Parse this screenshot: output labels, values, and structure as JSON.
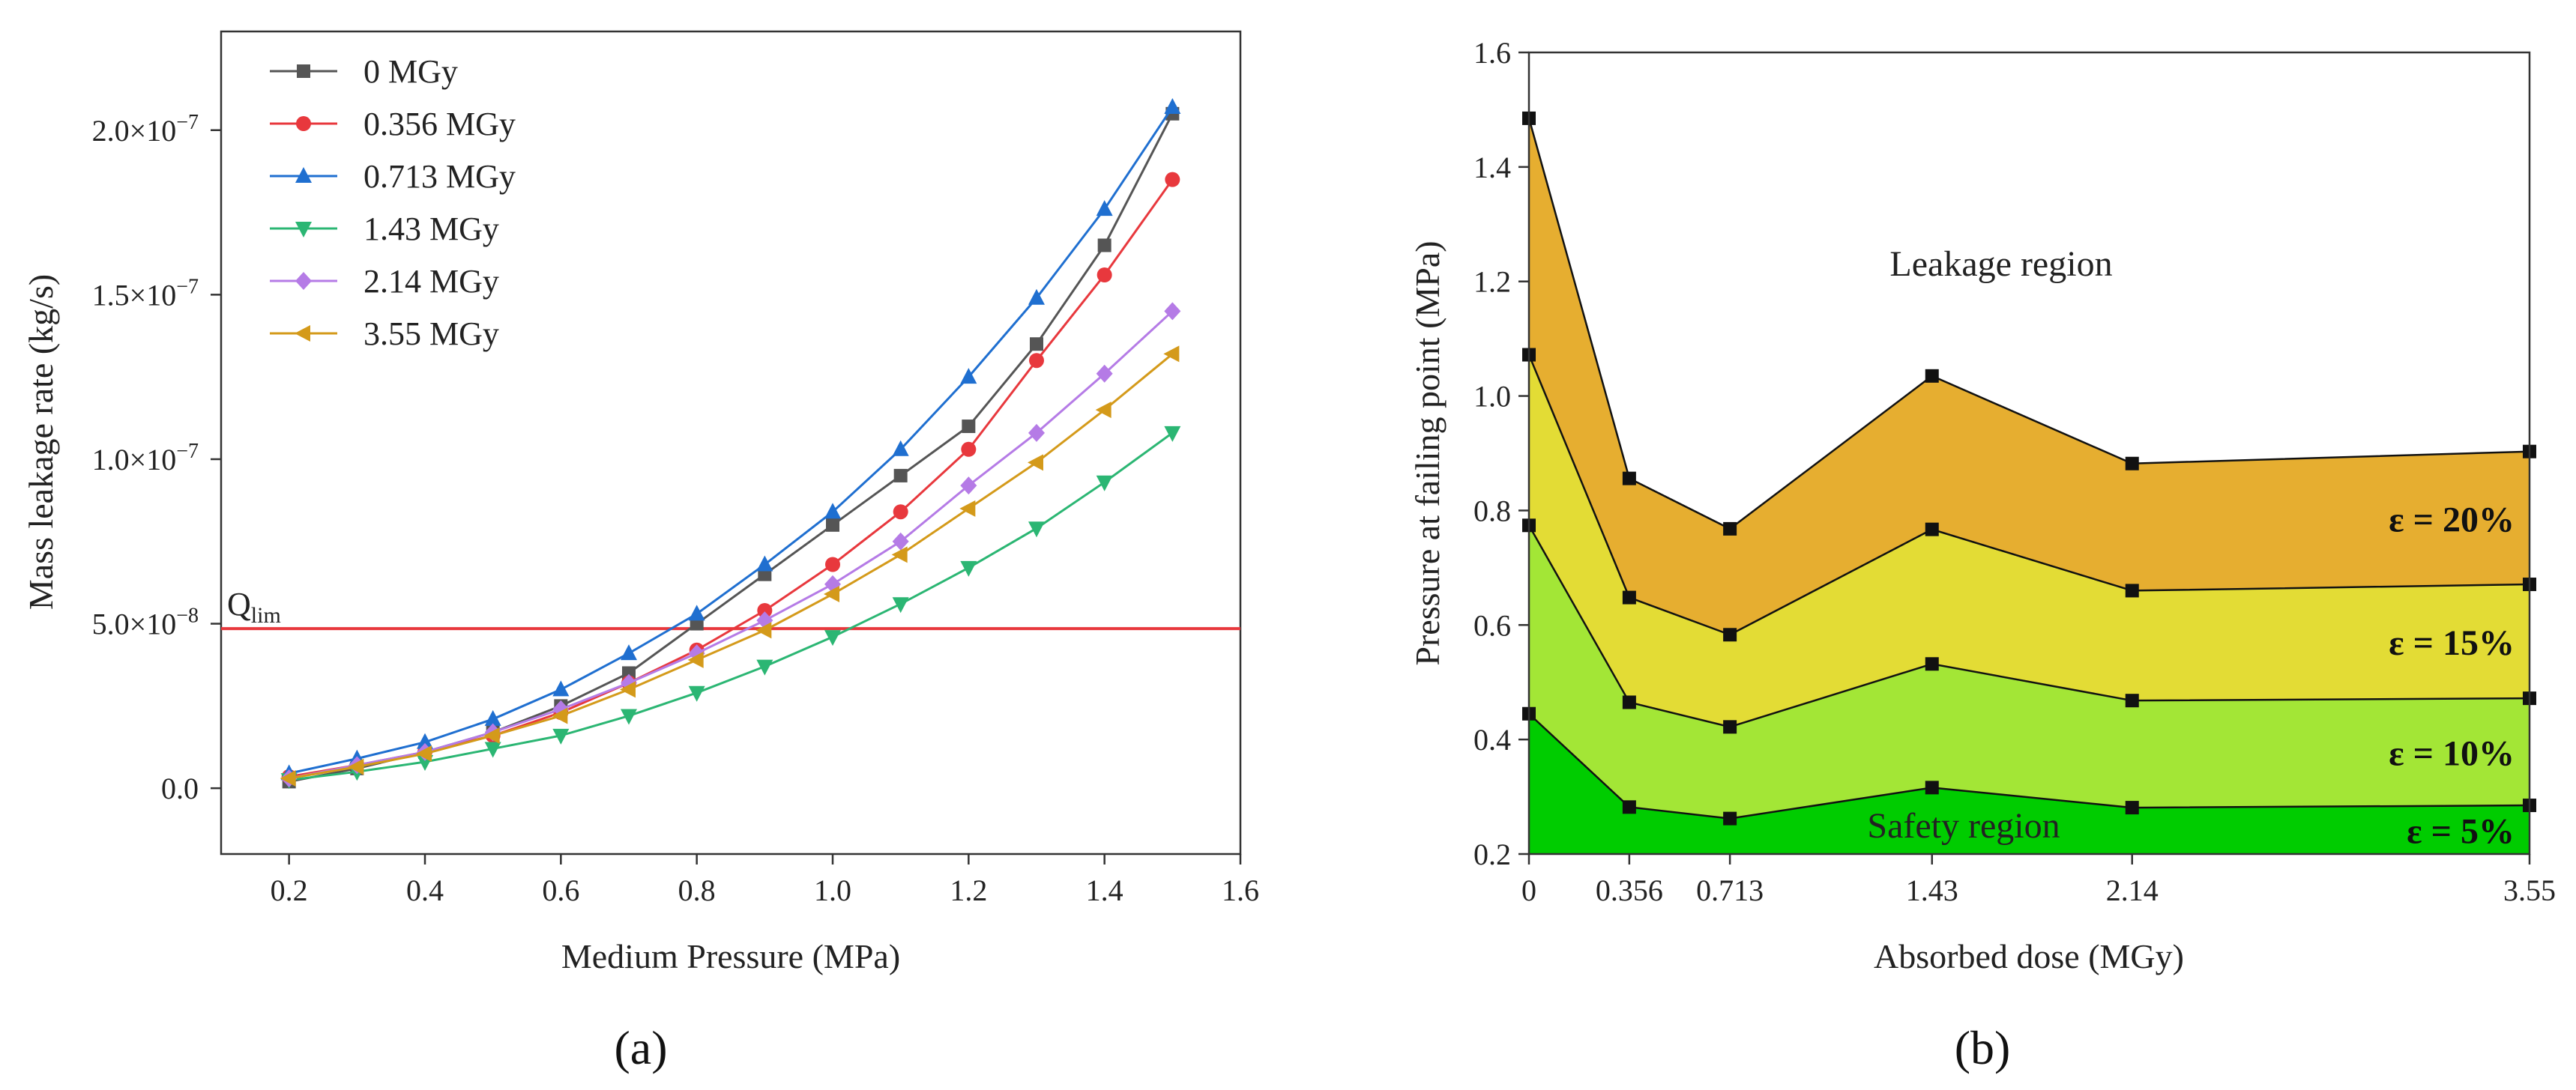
{
  "chart_data": [
    {
      "type": "line",
      "panel_label": "(a)",
      "xlabel": "Medium Pressure (MPa)",
      "ylabel": "Mass leakage rate (kg/s)",
      "xlim": [
        0.1,
        1.6
      ],
      "ylim": [
        -2e-08,
        2.3e-07
      ],
      "x_ticks": [
        "0.2",
        "0.4",
        "0.6",
        "0.8",
        "1.0",
        "1.2",
        "1.4",
        "1.6"
      ],
      "y_ticks": [
        {
          "mantissa": "0.0",
          "exp": ""
        },
        {
          "mantissa": "5.0×10",
          "exp": "−8"
        },
        {
          "mantissa": "1.0×10",
          "exp": "−7"
        },
        {
          "mantissa": "1.5×10",
          "exp": "−7"
        },
        {
          "mantissa": "2.0×10",
          "exp": "−7"
        }
      ],
      "y_tick_values": [
        0,
        5e-08,
        1e-07,
        1.5e-07,
        2e-07
      ],
      "x_tick_values": [
        0.2,
        0.4,
        0.6,
        0.8,
        1.0,
        1.2,
        1.4,
        1.6
      ],
      "x": [
        0.2,
        0.3,
        0.4,
        0.5,
        0.6,
        0.7,
        0.8,
        0.9,
        1.0,
        1.1,
        1.2,
        1.3,
        1.4,
        1.5
      ],
      "series": [
        {
          "name": "0 MGy",
          "color": "#555555",
          "marker": "square",
          "values": [
            2e-09,
            6e-09,
            1.1e-08,
            1.7e-08,
            2.5e-08,
            3.5e-08,
            5e-08,
            6.5e-08,
            8e-08,
            9.5e-08,
            1.1e-07,
            1.35e-07,
            1.65e-07,
            2.05e-07
          ]
        },
        {
          "name": "0.356 MGy",
          "color": "#e8383d",
          "marker": "circle",
          "values": [
            3.5e-09,
            7e-09,
            1.1e-08,
            1.6e-08,
            2.3e-08,
            3.2e-08,
            4.2e-08,
            5.4e-08,
            6.8e-08,
            8.4e-08,
            1.03e-07,
            1.3e-07,
            1.56e-07,
            1.85e-07
          ]
        },
        {
          "name": "0.713 MGy",
          "color": "#1f6fd0",
          "marker": "triangle-up",
          "values": [
            4.5e-09,
            9e-09,
            1.4e-08,
            2.1e-08,
            3e-08,
            4.1e-08,
            5.3e-08,
            6.8e-08,
            8.4e-08,
            1.03e-07,
            1.25e-07,
            1.49e-07,
            1.76e-07,
            2.07e-07
          ]
        },
        {
          "name": "1.43 MGy",
          "color": "#2bb673",
          "marker": "triangle-down",
          "values": [
            2.5e-09,
            5e-09,
            8e-09,
            1.2e-08,
            1.6e-08,
            2.2e-08,
            2.9e-08,
            3.7e-08,
            4.6e-08,
            5.6e-08,
            6.7e-08,
            7.9e-08,
            9.3e-08,
            1.08e-07
          ]
        },
        {
          "name": "2.14 MGy",
          "color": "#b57be6",
          "marker": "diamond",
          "values": [
            3e-09,
            7e-09,
            1.1e-08,
            1.7e-08,
            2.4e-08,
            3.2e-08,
            4.1e-08,
            5.1e-08,
            6.2e-08,
            7.5e-08,
            9.2e-08,
            1.08e-07,
            1.26e-07,
            1.45e-07
          ]
        },
        {
          "name": "3.55 MGy",
          "color": "#d49a1a",
          "marker": "triangle-left",
          "values": [
            3e-09,
            6.5e-09,
            1.05e-08,
            1.6e-08,
            2.2e-08,
            3e-08,
            3.9e-08,
            4.8e-08,
            5.9e-08,
            7.1e-08,
            8.5e-08,
            9.9e-08,
            1.15e-07,
            1.32e-07
          ]
        }
      ],
      "reference_line": {
        "label_main": "Q",
        "label_sub": "lim",
        "value": 4.85e-08,
        "color": "#e8383d"
      }
    },
    {
      "type": "area",
      "panel_label": "(b)",
      "xlabel": "Absorbed dose (MGy)",
      "ylabel": "Pressure at failing point (MPa)",
      "ylim": [
        0.2,
        1.6
      ],
      "y_ticks": [
        "0.2",
        "0.4",
        "0.6",
        "0.8",
        "1.0",
        "1.2",
        "1.4",
        "1.6"
      ],
      "y_tick_values": [
        0.2,
        0.4,
        0.6,
        0.8,
        1.0,
        1.2,
        1.4,
        1.6
      ],
      "x_ticks": [
        "0",
        "0.356",
        "0.713",
        "1.43",
        "2.14",
        "3.55"
      ],
      "x_tick_values": [
        0,
        0.356,
        0.713,
        1.43,
        2.14,
        3.55
      ],
      "x_categories": [
        0,
        0.356,
        0.713,
        1.43,
        2.14,
        3.55
      ],
      "series": [
        {
          "name": "ε = 5%",
          "fill": "#00cc00",
          "values": [
            0.445,
            0.282,
            0.262,
            0.316,
            0.281,
            0.285
          ]
        },
        {
          "name": "ε = 10%",
          "fill": "#a3e636",
          "values": [
            0.774,
            0.465,
            0.422,
            0.532,
            0.468,
            0.472
          ]
        },
        {
          "name": "ε = 15%",
          "fill": "#e3dc35",
          "values": [
            1.072,
            0.648,
            0.583,
            0.767,
            0.66,
            0.671
          ]
        },
        {
          "name": "ε = 20%",
          "fill": "#e6ae30",
          "values": [
            1.485,
            0.856,
            0.768,
            1.035,
            0.882,
            0.903
          ]
        }
      ],
      "annotations": {
        "upper": "Leakage region",
        "lower": "Safety region"
      }
    }
  ]
}
